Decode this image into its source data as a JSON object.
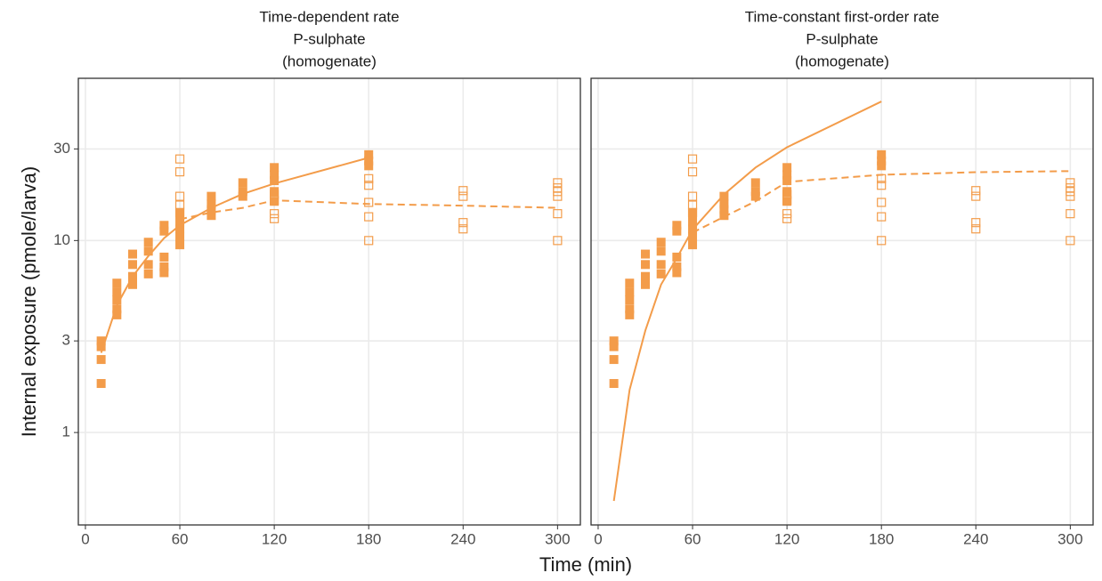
{
  "axis_titles": {
    "x": "Time (min)",
    "y": "Internal exposure (pmole/larva)"
  },
  "chart_data": [
    {
      "type": "line",
      "title": [
        "Time-dependent rate",
        "P-sulphate",
        "(homogenate)"
      ],
      "xlim": [
        -4.5,
        314.5
      ],
      "xticks": [
        0,
        60,
        120,
        180,
        240,
        300
      ],
      "ylim": [
        0.33,
        70
      ],
      "yticks": [
        1,
        3,
        10,
        30
      ],
      "log_y": true,
      "grid": true,
      "series": [
        {
          "kind": "filled-squares",
          "color": "#f39c4a",
          "x": [
            10,
            10,
            10,
            10,
            20,
            20,
            20,
            20,
            20,
            30,
            30,
            30,
            30,
            40,
            40,
            40,
            40,
            50,
            50,
            50,
            50,
            50,
            60,
            60,
            60,
            60,
            60,
            80,
            80,
            80,
            80,
            100,
            100,
            100,
            120,
            120,
            120,
            120,
            120,
            180,
            180,
            180
          ],
          "values": [
            3.0,
            2.8,
            2.4,
            1.8,
            6.0,
            5.4,
            4.9,
            4.4,
            4.1,
            8.5,
            7.5,
            6.5,
            5.9,
            9.8,
            8.8,
            7.5,
            6.7,
            12,
            11.2,
            8.2,
            7.3,
            6.8,
            13.8,
            12.5,
            11.5,
            10.5,
            9.5,
            17,
            15.5,
            14.5,
            13.5,
            20,
            18,
            17,
            24,
            22,
            20.5,
            18,
            16,
            28,
            26,
            24.5
          ]
        },
        {
          "kind": "open-squares",
          "color": "#f39c4a",
          "x": [
            60,
            60,
            60,
            60,
            60,
            120,
            120,
            120,
            120,
            180,
            180,
            180,
            180,
            180,
            240,
            240,
            240,
            240,
            300,
            300,
            300,
            300,
            300,
            300
          ],
          "values": [
            26.6,
            22.8,
            17,
            15.3,
            14,
            17.4,
            16.2,
            13.8,
            13,
            21,
            19.4,
            15.8,
            13.3,
            10,
            18.2,
            17,
            12.4,
            11.5,
            20,
            18.8,
            18,
            17,
            13.8,
            10
          ]
        },
        {
          "kind": "solid-line",
          "color": "#f39c4a",
          "x": [
            10,
            20,
            30,
            40,
            50,
            60,
            80,
            100,
            120,
            180
          ],
          "values": [
            2.6,
            4.6,
            6.5,
            8.3,
            10.3,
            12.0,
            14.8,
            17.5,
            19.8,
            27
          ]
        },
        {
          "kind": "dashed-line",
          "color": "#f39c4a",
          "x": [
            60,
            80,
            100,
            120,
            180,
            240,
            300
          ],
          "values": [
            12.9,
            14.0,
            14.8,
            16.2,
            15.5,
            15.2,
            14.8
          ]
        }
      ]
    },
    {
      "type": "line",
      "title": [
        "Time-constant first-order rate",
        "P-sulphate",
        "(homogenate)"
      ],
      "xlim": [
        -4.5,
        314.5
      ],
      "xticks": [
        0,
        60,
        120,
        180,
        240,
        300
      ],
      "ylim": [
        0.33,
        70
      ],
      "yticks": [
        1,
        3,
        10,
        30
      ],
      "log_y": true,
      "grid": true,
      "series": [
        {
          "kind": "filled-squares",
          "color": "#f39c4a",
          "x": [
            10,
            10,
            10,
            10,
            20,
            20,
            20,
            20,
            20,
            30,
            30,
            30,
            30,
            40,
            40,
            40,
            40,
            50,
            50,
            50,
            50,
            50,
            60,
            60,
            60,
            60,
            60,
            80,
            80,
            80,
            80,
            100,
            100,
            100,
            120,
            120,
            120,
            120,
            120,
            180,
            180,
            180
          ],
          "values": [
            3.0,
            2.8,
            2.4,
            1.8,
            6.0,
            5.4,
            4.9,
            4.4,
            4.1,
            8.5,
            7.5,
            6.5,
            5.9,
            9.8,
            8.8,
            7.5,
            6.7,
            12,
            11.2,
            8.2,
            7.3,
            6.8,
            13.8,
            12.5,
            11.5,
            10.5,
            9.5,
            17,
            15.5,
            14.5,
            13.5,
            20,
            18,
            17,
            24,
            22,
            20.5,
            18,
            16,
            28,
            26,
            24.5
          ]
        },
        {
          "kind": "open-squares",
          "color": "#f39c4a",
          "x": [
            60,
            60,
            60,
            60,
            60,
            120,
            120,
            120,
            120,
            180,
            180,
            180,
            180,
            180,
            240,
            240,
            240,
            240,
            300,
            300,
            300,
            300,
            300,
            300
          ],
          "values": [
            26.6,
            22.8,
            17,
            15.3,
            14,
            17.4,
            16.2,
            13.8,
            13,
            21,
            19.4,
            15.8,
            13.3,
            10,
            18.2,
            17,
            12.4,
            11.5,
            20,
            18.8,
            18,
            17,
            13.8,
            10
          ]
        },
        {
          "kind": "solid-line",
          "color": "#f39c4a",
          "x": [
            10,
            20,
            30,
            40,
            50,
            60,
            80,
            100,
            120,
            180
          ],
          "values": [
            0.44,
            1.67,
            3.4,
            5.9,
            8.1,
            11.4,
            17.4,
            24,
            30.6,
            53
          ]
        },
        {
          "kind": "dashed-line",
          "color": "#f39c4a",
          "x": [
            60,
            80,
            100,
            120,
            180,
            240,
            300
          ],
          "values": [
            11,
            13.3,
            16,
            20.2,
            22,
            22.7,
            23
          ]
        }
      ]
    }
  ]
}
